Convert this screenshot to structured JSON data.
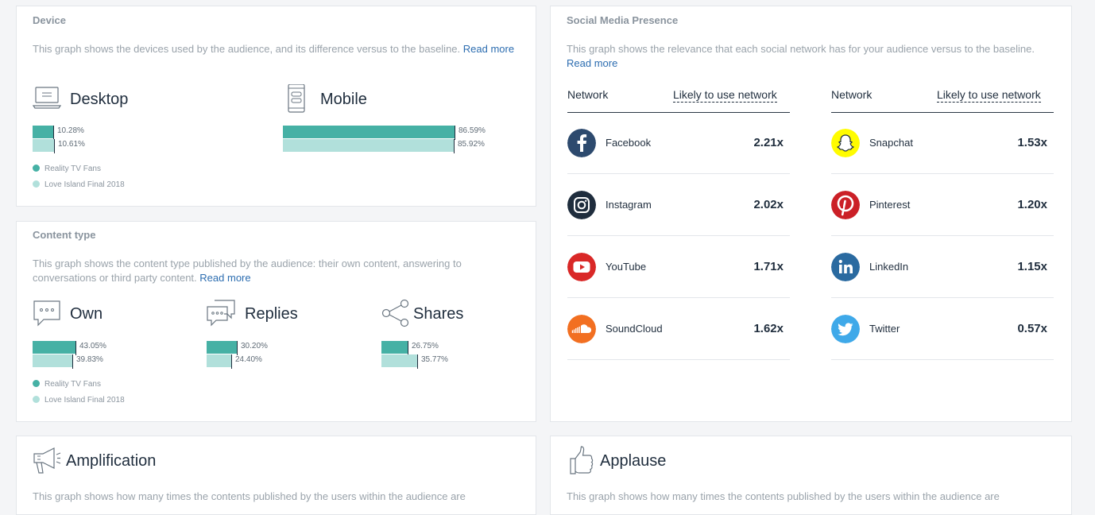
{
  "device": {
    "title": "Device",
    "desc": "This graph shows the devices used by the audience, and its difference versus to the baseline.",
    "read_more": "Read more",
    "categories": [
      {
        "label": "Desktop",
        "primary": 10.28,
        "baseline": 10.61,
        "primary_label": "10.28%",
        "baseline_label": "10.61%"
      },
      {
        "label": "Mobile",
        "primary": 86.59,
        "baseline": 85.92,
        "primary_label": "86.59%",
        "baseline_label": "85.92%"
      }
    ],
    "legend": [
      "Reality TV Fans",
      "Love Island Final 2018"
    ]
  },
  "content_type": {
    "title": "Content type",
    "desc": "This graph shows the content type published by the audience: their own content, answering to conversations or third party content.",
    "read_more": "Read more",
    "categories": [
      {
        "label": "Own",
        "primary": 43.05,
        "baseline": 39.83,
        "primary_label": "43.05%",
        "baseline_label": "39.83%"
      },
      {
        "label": "Replies",
        "primary": 30.2,
        "baseline": 24.4,
        "primary_label": "30.20%",
        "baseline_label": "24.40%"
      },
      {
        "label": "Shares",
        "primary": 26.75,
        "baseline": 35.77,
        "primary_label": "26.75%",
        "baseline_label": "35.77%"
      }
    ],
    "legend": [
      "Reality TV Fans",
      "Love Island Final 2018"
    ]
  },
  "social": {
    "title": "Social Media Presence",
    "desc": "This graph shows the relevance that each social network has for your audience versus to the baseline.",
    "read_more": "Read more",
    "col_network": "Network",
    "col_likely": "Likely to use network",
    "left": [
      {
        "name": "Facebook",
        "value": "2.21x",
        "icon": "facebook-icon",
        "color": "#2d4a6e"
      },
      {
        "name": "Instagram",
        "value": "2.02x",
        "icon": "instagram-icon",
        "color": "#1f2d3d"
      },
      {
        "name": "YouTube",
        "value": "1.71x",
        "icon": "youtube-icon",
        "color": "#d92827"
      },
      {
        "name": "SoundCloud",
        "value": "1.62x",
        "icon": "soundcloud-icon",
        "color": "#f26f21"
      }
    ],
    "right": [
      {
        "name": "Snapchat",
        "value": "1.53x",
        "icon": "snapchat-icon",
        "color": "#fffc00"
      },
      {
        "name": "Pinterest",
        "value": "1.20x",
        "icon": "pinterest-icon",
        "color": "#cb2027"
      },
      {
        "name": "LinkedIn",
        "value": "1.15x",
        "icon": "linkedin-icon",
        "color": "#2a6aa0"
      },
      {
        "name": "Twitter",
        "value": "0.57x",
        "icon": "twitter-icon",
        "color": "#3fa9e9"
      }
    ]
  },
  "amplification": {
    "title": "Amplification",
    "desc": "This graph shows how many times the contents published by the users within the audience are"
  },
  "applause": {
    "title": "Applause",
    "desc": "This graph shows how many times the contents published by the users within the audience are"
  },
  "colors": {
    "primary": "#46b1a5",
    "baseline": "#b1e0db",
    "link": "#2c6db0"
  }
}
